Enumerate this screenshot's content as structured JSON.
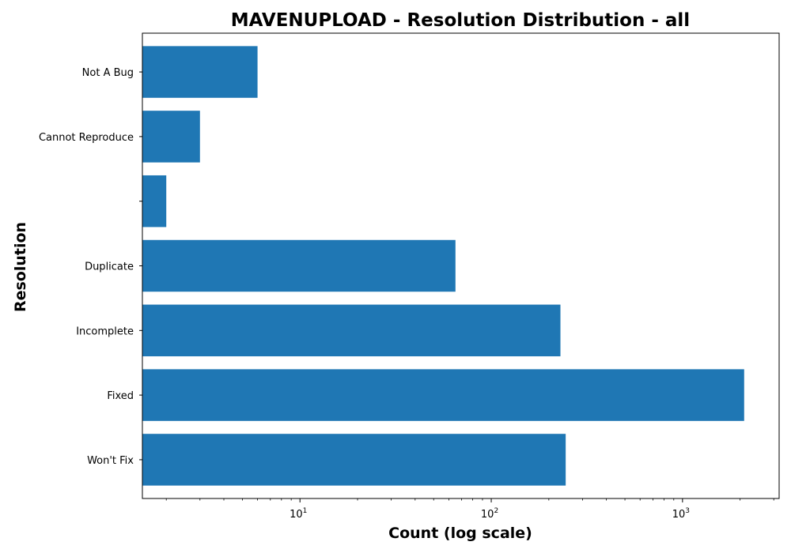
{
  "chart_data": {
    "type": "bar",
    "orientation": "horizontal",
    "title": "MAVENUPLOAD - Resolution Distribution - all",
    "xlabel": "Count (log scale)",
    "ylabel": "Resolution",
    "x_scale": "log",
    "xlim": [
      1.5,
      3200
    ],
    "x_ticks": [
      {
        "base": "10",
        "exp": "1",
        "value": 10
      },
      {
        "base": "10",
        "exp": "2",
        "value": 100
      },
      {
        "base": "10",
        "exp": "3",
        "value": 1000
      }
    ],
    "categories": [
      "Won't Fix",
      "Fixed",
      "Incomplete",
      "Duplicate",
      "",
      "Cannot Reproduce",
      "Not A Bug"
    ],
    "values": [
      245,
      2100,
      230,
      65,
      2,
      3,
      6
    ],
    "bar_color": "#1f77b4",
    "grid": false,
    "legend": "none"
  }
}
